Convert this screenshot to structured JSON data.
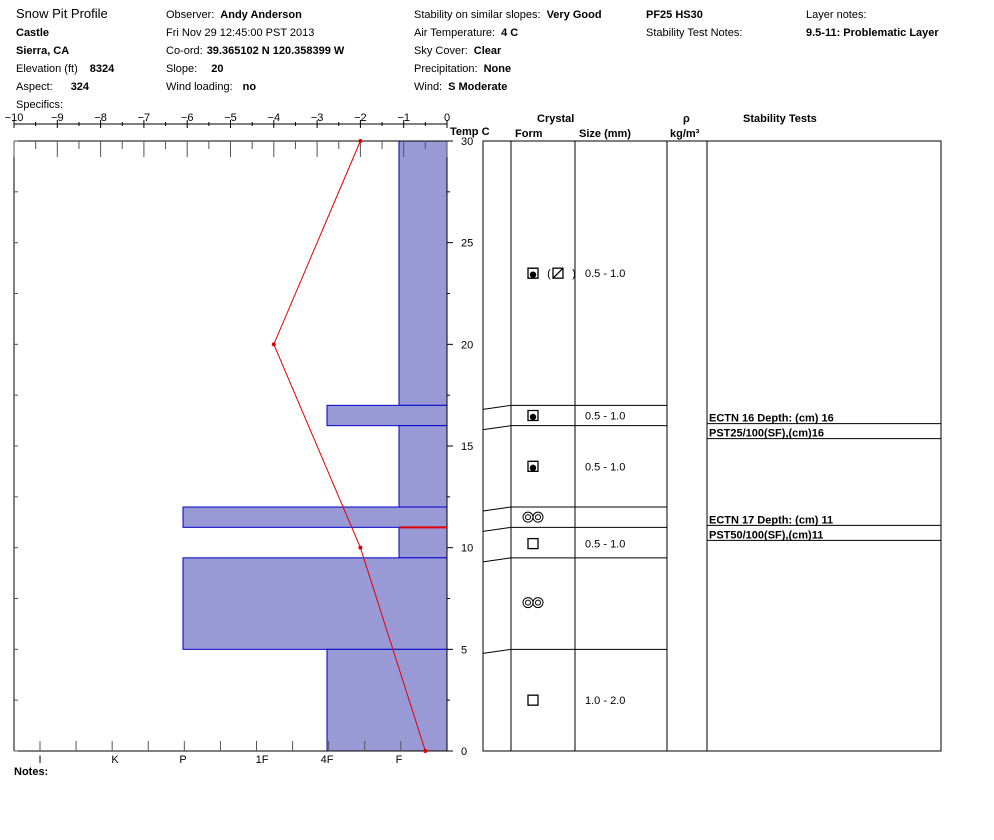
{
  "header": {
    "title": "Snow Pit Profile",
    "location": "Castle",
    "region": "Sierra, CA",
    "elevation_label": "Elevation (ft)",
    "elevation": "8324",
    "aspect_label": "Aspect:",
    "aspect": "324",
    "specifics_label": "Specifics:",
    "observer_label": "Observer:",
    "observer": "Andy Anderson",
    "datetime": "Fri Nov 29 12:45:00 PST 2013",
    "coord_label": "Co-ord:",
    "coord": "39.365102 N 120.358399 W",
    "slope_label": "Slope:",
    "slope": "20",
    "wind_loading_label": "Wind loading:",
    "wind_loading": "no",
    "stability_label": "Stability on similar slopes:",
    "stability": "Very Good",
    "air_temp_label": "Air Temperature:",
    "air_temp": "4 C",
    "sky_label": "Sky Cover:",
    "sky": "Clear",
    "precip_label": "Precipitation:",
    "precip": "None",
    "wind_label": "Wind:",
    "wind": "S Moderate",
    "test_summary": "PF25 HS30",
    "stability_test_notes_label": "Stability Test Notes:",
    "layer_notes_label": "Layer notes:",
    "layer_notes": "9.5-11: Problematic Layer",
    "notes_label": "Notes:"
  },
  "columns": {
    "crystal": "Crystal",
    "form": "Form",
    "size": "Size (mm)",
    "rho": "ρ",
    "density_unit": "kg/m³",
    "stability_tests": "Stability Tests",
    "temp_c": "Temp C"
  },
  "chart_data": {
    "type": "snow-profile",
    "temp_axis": {
      "label": "Temp C",
      "range": [
        -10,
        0
      ],
      "ticks": [
        -10,
        -9,
        -8,
        -7,
        -6,
        -5,
        -4,
        -3,
        -2,
        -1,
        0
      ]
    },
    "height_axis": {
      "unit": "cm",
      "range": [
        0,
        30
      ],
      "ticks": [
        0,
        5,
        10,
        15,
        20,
        25,
        30
      ]
    },
    "hardness_axis": {
      "ticks": [
        "I",
        "K",
        "P",
        "1F",
        "4F",
        "F"
      ]
    },
    "temperature_profile": [
      {
        "height": 30,
        "temp": -2.0
      },
      {
        "height": 20,
        "temp": -4.0
      },
      {
        "height": 10,
        "temp": -2.0
      },
      {
        "height": 0,
        "temp": -0.5
      }
    ],
    "hardness_layers": [
      {
        "bottom": 17,
        "top": 30,
        "hardness": "F"
      },
      {
        "bottom": 16,
        "top": 17,
        "hardness": "4F"
      },
      {
        "bottom": 12,
        "top": 16,
        "hardness": "F"
      },
      {
        "bottom": 11,
        "top": 12,
        "hardness": "P"
      },
      {
        "bottom": 9.5,
        "top": 11,
        "hardness": "F"
      },
      {
        "bottom": 5,
        "top": 9.5,
        "hardness": "P"
      },
      {
        "bottom": 0,
        "top": 5,
        "hardness": "4F"
      }
    ],
    "problem_layer_height": 11,
    "crystal_layers": [
      {
        "height": 23.5,
        "form": [
          "depth-hoar",
          "(",
          "faceted-rounded",
          ")"
        ],
        "size": "0.5 - 1.0"
      },
      {
        "height": 16.5,
        "form": [
          "depth-hoar"
        ],
        "size": "0.5 - 1.0"
      },
      {
        "height": 14,
        "form": [
          "depth-hoar"
        ],
        "size": "0.5 - 1.0"
      },
      {
        "height": 11.5,
        "form": [
          "melt-form"
        ],
        "size": ""
      },
      {
        "height": 10.2,
        "form": [
          "faceted"
        ],
        "size": "0.5 - 1.0"
      },
      {
        "height": 7.3,
        "form": [
          "melt-form"
        ],
        "size": ""
      },
      {
        "height": 2.5,
        "form": [
          "faceted"
        ],
        "size": "1.0 - 2.0"
      }
    ],
    "stability_tests": [
      {
        "height": 16,
        "line1": "ECTN 16   Depth: (cm) 16",
        "line2": "PST25/100(SF),(cm)16"
      },
      {
        "height": 11,
        "line1": "ECTN 17   Depth: (cm) 11",
        "line2": "PST50/100(SF),(cm)11"
      }
    ],
    "colors": {
      "hardness_fill": "#9999d6",
      "hardness_stroke": "#0000cc",
      "temp_line": "#e00000"
    }
  }
}
